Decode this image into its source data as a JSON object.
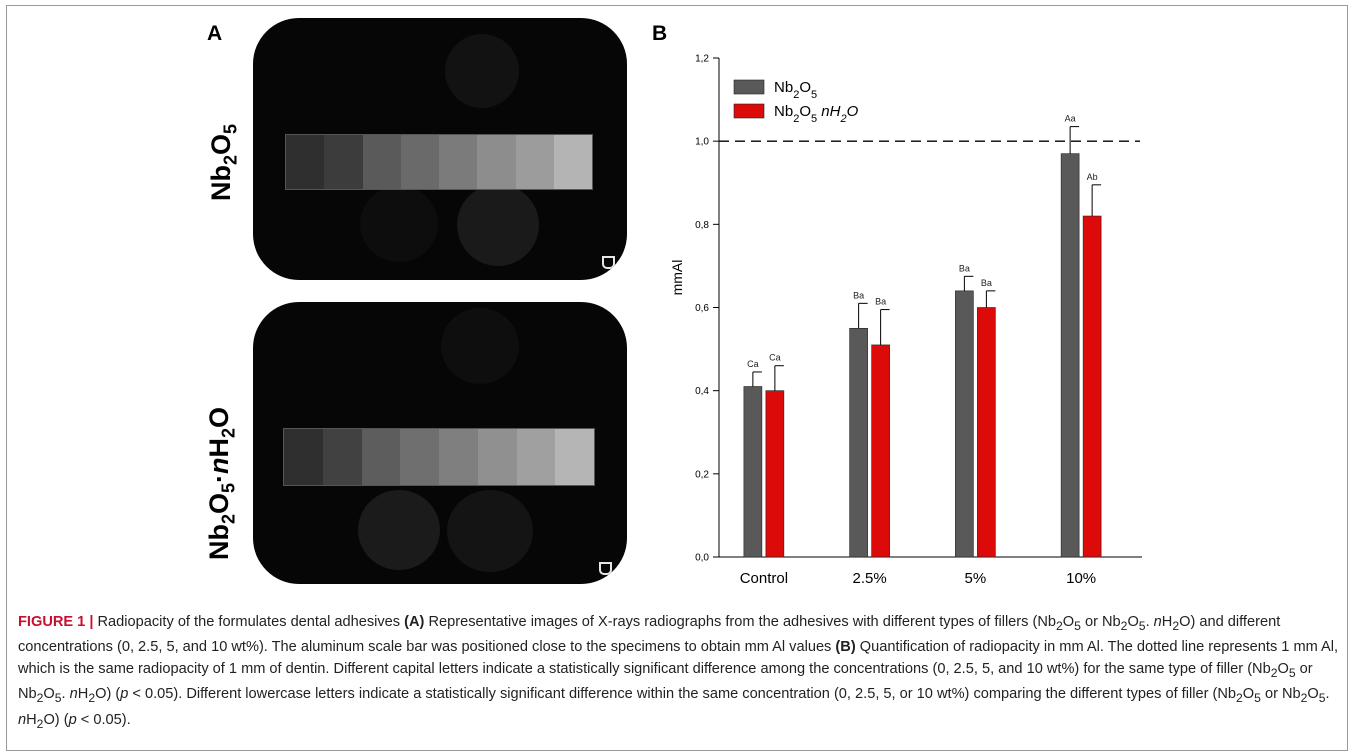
{
  "panel_a": {
    "label": "A",
    "top_label": "Nb₂O₅",
    "bottom_label": "Nb₂O₅·nH₂O",
    "scale_steps": 8
  },
  "panel_b": {
    "label": "B"
  },
  "chart_data": {
    "type": "bar",
    "ylabel": "mmAl",
    "xlabel": "",
    "ylim": [
      0,
      1.2
    ],
    "yticks": [
      "0,0",
      "0,2",
      "0,4",
      "0,6",
      "0,8",
      "1,0",
      "1,2"
    ],
    "categories": [
      "Control",
      "2.5%",
      "5%",
      "10%"
    ],
    "reference_line": 1.0,
    "legend_position": "top-left",
    "series": [
      {
        "name": "Nb2O5",
        "color": "#595959",
        "values": [
          0.41,
          0.55,
          0.64,
          0.97
        ],
        "errors": [
          0.035,
          0.06,
          0.035,
          0.065
        ],
        "letters": [
          "Ca",
          "Ba",
          "Ba",
          "Aa"
        ]
      },
      {
        "name": "Nb2O5 nH2O",
        "color": "#dd0a0a",
        "values": [
          0.4,
          0.51,
          0.6,
          0.82
        ],
        "errors": [
          0.06,
          0.085,
          0.04,
          0.075
        ],
        "letters": [
          "Ca",
          "Ba",
          "Ba",
          "Ab"
        ]
      }
    ]
  },
  "caption": {
    "figure_number": "FIGURE 1 |",
    "text": [
      " Radiopacity of the formulates dental adhesives ",
      "(A)",
      " Representative images of X-rays radiographs from the adhesives with different types of fillers (Nb",
      "2",
      "O",
      "5",
      " or Nb",
      "2",
      "O",
      "5",
      ". ",
      "n",
      "H",
      "2",
      "O) and different concentrations (0, 2.5, 5, and 10 wt%). The aluminum scale bar was positioned close to the specimens to obtain mm Al values ",
      "(B)",
      " Quantification of radiopacity in mm Al. The dotted line represents 1 mm Al, which is the same radiopacity of 1 mm of dentin. Different capital letters indicate a statistically significant difference among the concentrations (0, 2.5, 5, and 10 wt%) for the same type of filler (Nb",
      "2",
      "O",
      "5",
      " or Nb",
      "2",
      "O",
      "5",
      ". ",
      "n",
      "H",
      "2",
      "O) (",
      "p",
      " < 0.05). Different lowercase letters indicate a statistically significant difference within the same concentration (0, 2.5, 5, or 10 wt%) comparing the different types of filler (Nb",
      "2",
      "O",
      "5",
      " or Nb",
      "2",
      "O",
      "5",
      ". ",
      "n",
      "H",
      "2",
      "O) (",
      "p",
      " < 0.05)."
    ]
  }
}
